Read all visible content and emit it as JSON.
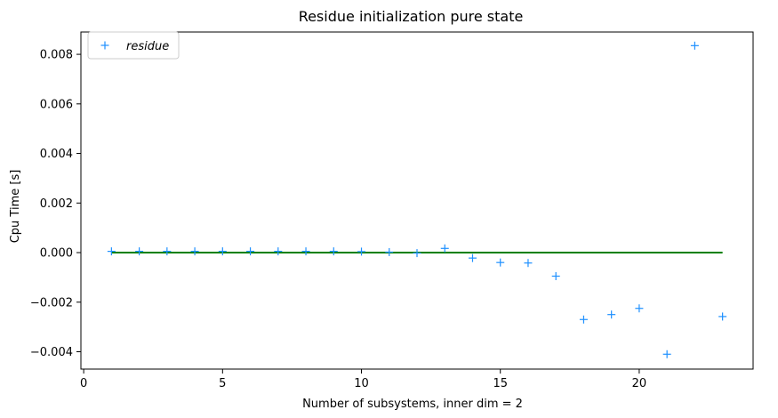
{
  "chart_data": {
    "type": "scatter",
    "title": "Residue initialization pure state",
    "xlabel": "Number of subsystems, inner dim = 2",
    "ylabel": "Cpu Time [s]",
    "xlim": [
      -0.1,
      24.1
    ],
    "ylim": [
      -0.0047,
      0.0089
    ],
    "xticks": [
      0,
      5,
      10,
      15,
      20
    ],
    "xtick_labels": [
      "0",
      "5",
      "10",
      "15",
      "20"
    ],
    "yticks": [
      -0.004,
      -0.002,
      0.0,
      0.002,
      0.004,
      0.006,
      0.008
    ],
    "ytick_labels": [
      "−0.004",
      "−0.002",
      "0.000",
      "0.002",
      "0.004",
      "0.006",
      "0.008"
    ],
    "grid": false,
    "legend": {
      "position": "top-left",
      "entries": [
        {
          "name": "residue",
          "marker": "+",
          "color": "#1e90ff",
          "italic": true
        }
      ]
    },
    "series": [
      {
        "name": "residue",
        "marker": "+",
        "color": "#1e90ff",
        "x": [
          1,
          2,
          3,
          4,
          5,
          6,
          7,
          8,
          9,
          10,
          11,
          12,
          13,
          14,
          15,
          16,
          17,
          18,
          19,
          20,
          21,
          22,
          23
        ],
        "y": [
          5e-05,
          5e-05,
          5e-05,
          5e-05,
          5e-05,
          5e-05,
          5e-05,
          5e-05,
          5e-05,
          4e-05,
          2e-05,
          -2e-05,
          0.00017,
          -0.00022,
          -0.0004,
          -0.00042,
          -0.00095,
          -0.0027,
          -0.0025,
          -0.00225,
          -0.0041,
          0.00835,
          -0.00258
        ]
      },
      {
        "marker": "line",
        "color": "#008000",
        "x": [
          1,
          23
        ],
        "y": [
          0.0,
          0.0
        ]
      }
    ]
  }
}
